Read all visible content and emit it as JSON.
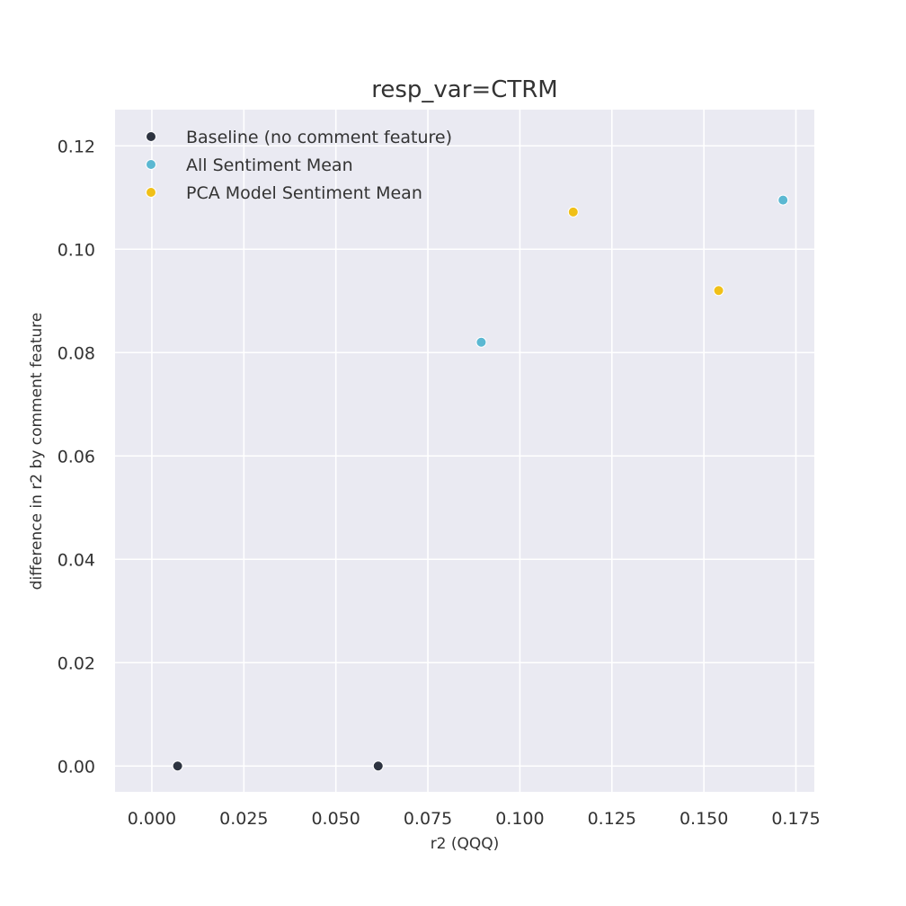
{
  "chart_data": {
    "type": "scatter",
    "title": "resp_var=CTRM",
    "xlabel": "r2 (QQQ)",
    "ylabel": "difference in r2 by comment feature",
    "xlim": [
      -0.01,
      0.18
    ],
    "ylim": [
      -0.005,
      0.127
    ],
    "xticks": [
      0.0,
      0.025,
      0.05,
      0.075,
      0.1,
      0.125,
      0.15,
      0.175
    ],
    "xtick_labels": [
      "0.000",
      "0.025",
      "0.050",
      "0.075",
      "0.100",
      "0.125",
      "0.150",
      "0.175"
    ],
    "yticks": [
      0.0,
      0.02,
      0.04,
      0.06,
      0.08,
      0.1,
      0.12
    ],
    "ytick_labels": [
      "0.00",
      "0.02",
      "0.04",
      "0.06",
      "0.08",
      "0.10",
      "0.12"
    ],
    "grid": true,
    "legend_position": "top-left",
    "series": [
      {
        "name": "Baseline (no comment feature)",
        "color": "#2d3340",
        "points": [
          [
            0.007,
            0.0
          ],
          [
            0.0615,
            0.0
          ]
        ]
      },
      {
        "name": "All Sentiment Mean",
        "color": "#5bb8d2",
        "points": [
          [
            0.0895,
            0.082
          ],
          [
            0.1715,
            0.1095
          ]
        ]
      },
      {
        "name": "PCA Model Sentiment Mean",
        "color": "#f0c018",
        "points": [
          [
            0.1145,
            0.1072
          ],
          [
            0.154,
            0.092
          ]
        ]
      }
    ]
  }
}
